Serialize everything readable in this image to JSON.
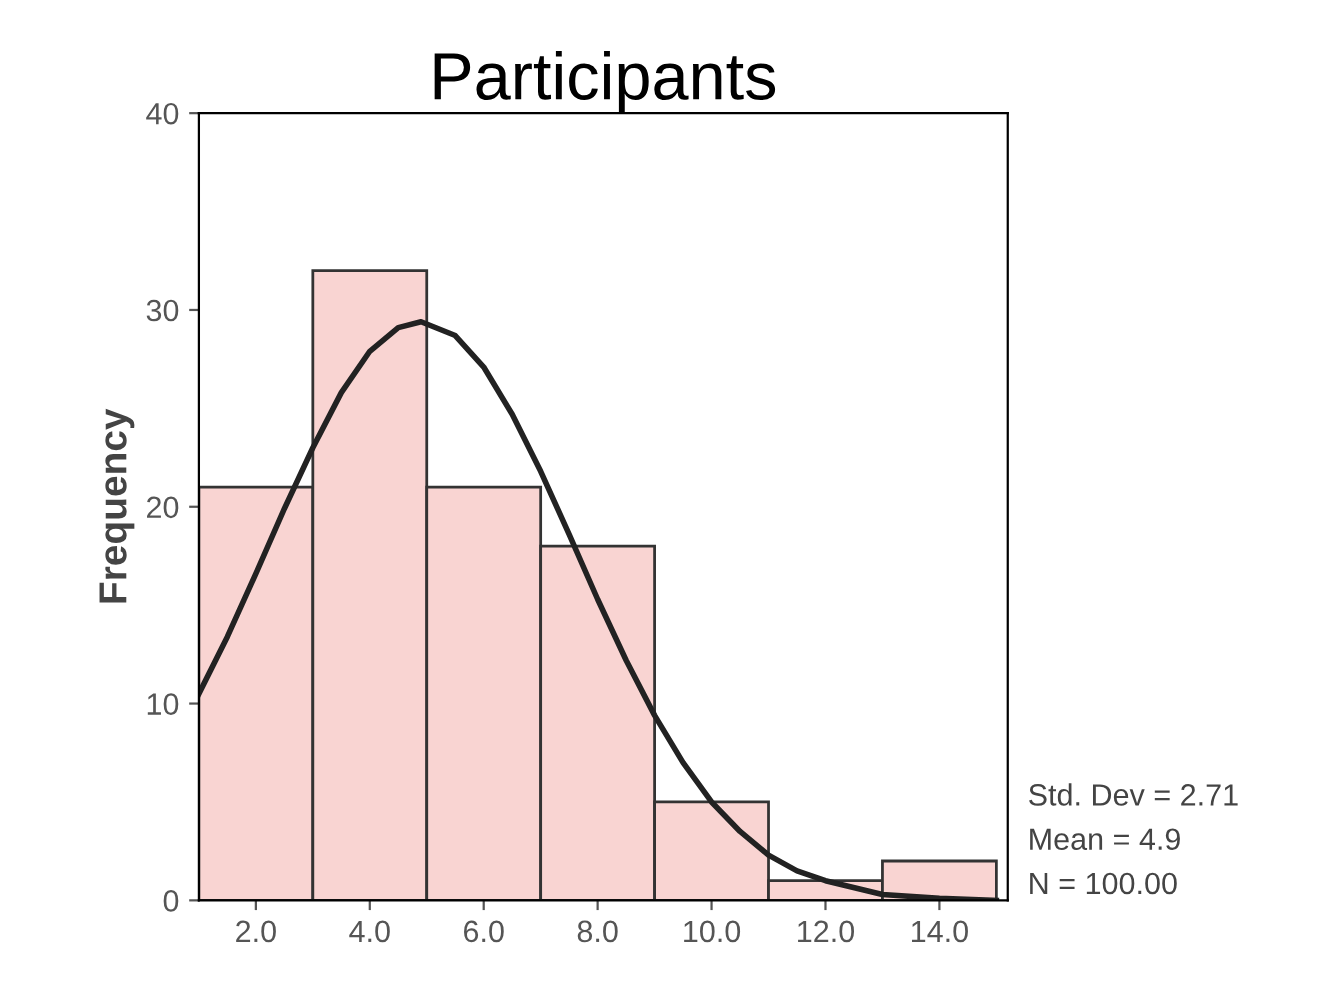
{
  "chart_data": {
    "type": "histogram",
    "title": "Participants",
    "ylabel": "Frequency",
    "bins": [
      1,
      3,
      5,
      7,
      9,
      11,
      13,
      15
    ],
    "values": [
      21,
      32,
      21,
      18,
      5,
      1,
      2
    ],
    "color": "#f9d4d2",
    "series": [
      {
        "type": "line",
        "color": "#222222",
        "x": [
          1,
          1.5,
          2,
          2.5,
          3,
          3.5,
          4,
          4.5,
          4.9,
          5.5,
          6,
          6.5,
          7,
          7.5,
          8,
          8.5,
          9,
          9.5,
          10,
          10.5,
          11,
          11.5,
          12,
          13,
          14,
          15
        ],
        "values": [
          10.5,
          13.4,
          16.6,
          19.9,
          23.0,
          25.8,
          27.9,
          29.1,
          29.4,
          28.7,
          27.1,
          24.7,
          21.8,
          18.6,
          15.3,
          12.2,
          9.4,
          7.0,
          5.0,
          3.5,
          2.3,
          1.5,
          1.0,
          0.3,
          0.1,
          0.0
        ]
      }
    ],
    "xlim": [
      1,
      15.2
    ],
    "ylim": [
      0,
      40
    ],
    "xticks": [
      {
        "value": 2,
        "label": "2.0"
      },
      {
        "value": 4,
        "label": "4.0"
      },
      {
        "value": 6,
        "label": "6.0"
      },
      {
        "value": 8,
        "label": "8.0"
      },
      {
        "value": 10,
        "label": "10.0"
      },
      {
        "value": 12,
        "label": "12.0"
      },
      {
        "value": 14,
        "label": "14.0"
      }
    ],
    "yticks": [
      0,
      10,
      20,
      30,
      40
    ],
    "grid": false,
    "legend": false,
    "annotations": [
      "Std. Dev = 2.71",
      "Mean = 4.9",
      "N = 100.00"
    ]
  }
}
